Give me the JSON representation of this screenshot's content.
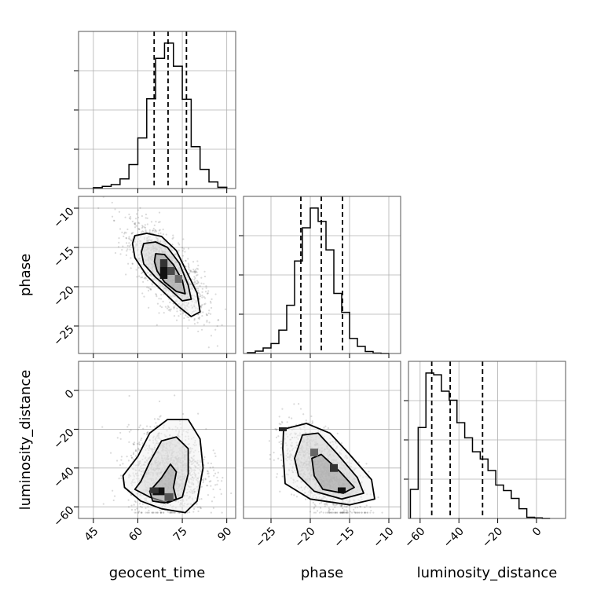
{
  "chart_data": {
    "type": "corner",
    "parameters": [
      "geocent_time",
      "phase",
      "luminosity_distance"
    ],
    "grid": true,
    "histograms": [
      {
        "parameter": "geocent_time",
        "bin_edges": [
          45,
          48,
          51,
          54,
          57,
          60,
          63,
          66,
          69,
          72,
          75,
          78,
          81,
          84,
          87,
          90
        ],
        "counts": [
          2,
          5,
          9,
          22,
          55,
          116,
          206,
          299,
          334,
          281,
          205,
          96,
          44,
          15,
          3
        ],
        "quantiles": [
          65.5,
          70.2,
          76.4
        ]
      },
      {
        "parameter": "phase",
        "bin_edges": [
          -28,
          -27,
          -26,
          -25,
          -24,
          -23,
          -22,
          -21,
          -20,
          -19,
          -18,
          -17,
          -16,
          -15,
          -14,
          -13,
          -12,
          -11,
          -10
        ],
        "counts": [
          2,
          6,
          14,
          25,
          59,
          122,
          234,
          318,
          368,
          334,
          262,
          152,
          104,
          38,
          18,
          5,
          1,
          0
        ],
        "quantiles": [
          -21.2,
          -18.6,
          -15.9
        ]
      },
      {
        "parameter": "luminosity_distance",
        "bin_edges": [
          -65,
          -61,
          -57,
          -53,
          -49,
          -45,
          -41,
          -37,
          -33,
          -29,
          -25,
          -21,
          -17,
          -13,
          -9,
          -5,
          -1,
          3,
          7
        ],
        "counts": [
          48,
          150,
          240,
          237,
          210,
          195,
          158,
          133,
          110,
          98,
          79,
          55,
          46,
          33,
          16,
          2,
          1,
          0
        ],
        "quantiles": [
          -54.0,
          -44.5,
          -27.8
        ]
      }
    ],
    "panels_2d": [
      {
        "x": "geocent_time",
        "y": "phase",
        "correlation": "negative",
        "density_peak": [
          70,
          -18
        ]
      },
      {
        "x": "geocent_time",
        "y": "luminosity_distance",
        "correlation": "weak",
        "density_peak": [
          67,
          -52
        ]
      },
      {
        "x": "phase",
        "y": "luminosity_distance",
        "correlation": "negative",
        "density_peak": [
          -16,
          -52
        ]
      }
    ],
    "axis_ranges": {
      "geocent_time": [
        40,
        93
      ],
      "phase": [
        -28.5,
        -8.5
      ],
      "luminosity_distance": [
        -66,
        15
      ]
    },
    "ticks": {
      "geocent_time": [
        45,
        60,
        75,
        90
      ],
      "phase": [
        -25,
        -20,
        -15,
        -10
      ],
      "luminosity_distance": [
        -60,
        -40,
        -20,
        0
      ]
    },
    "tick_labels": {
      "geocent_time": [
        "45",
        "60",
        "75",
        "90"
      ],
      "phase_x": [
        "−25",
        "−20",
        "−15",
        "−10"
      ],
      "phase_y": [
        "−10",
        "−15",
        "−20",
        "−25"
      ],
      "luminosity_distance_x": [
        "−60",
        "−40",
        "−20",
        "0"
      ],
      "luminosity_distance_y": [
        "0",
        "−20",
        "−40",
        "−60"
      ]
    },
    "xlabels": [
      "geocent_time",
      "phase",
      "luminosity_distance"
    ],
    "ylabels": [
      "phase",
      "luminosity_distance"
    ]
  }
}
